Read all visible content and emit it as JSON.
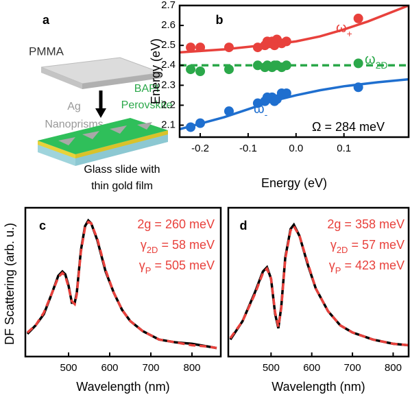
{
  "diagram": {
    "panel_label": "a",
    "pmma": "PMMA",
    "ag": [
      "Ag",
      "Nanoprisms"
    ],
    "bapi": [
      "BAPI",
      "Perovskite"
    ],
    "glass": [
      "Glass slide with",
      "thin gold film"
    ]
  },
  "chart_data": [
    {
      "type": "scatter",
      "panel_label": "b",
      "xlabel": "Energy (eV)",
      "ylabel": "Energy (eV)",
      "xlim": [
        -0.243,
        0.235
      ],
      "ylim": [
        2.04,
        2.7
      ],
      "xticks": [
        -0.2,
        -0.1,
        {
          "value": 0,
          "label": "0.0"
        },
        0.1
      ],
      "yticks": [
        2.1,
        2.2,
        2.3,
        2.4,
        2.5,
        2.6,
        2.7
      ],
      "series": [
        {
          "color": "#e8413c",
          "label": {
            "symbol": "ω",
            "sub": "+"
          },
          "x": [
            -0.22,
            -0.2,
            -0.14,
            -0.08,
            -0.065,
            -0.06,
            -0.055,
            -0.05,
            -0.045,
            -0.04,
            -0.03,
            -0.02,
            0.13
          ],
          "values": [
            2.49,
            2.49,
            2.49,
            2.49,
            2.5,
            2.52,
            2.51,
            2.52,
            2.5,
            2.53,
            2.51,
            2.52,
            2.635
          ]
        },
        {
          "color": "#2ba84a",
          "label": {
            "symbol": "ω",
            "sub": "2D"
          },
          "x": [
            -0.22,
            -0.2,
            -0.14,
            -0.08,
            -0.065,
            -0.06,
            -0.05,
            -0.045,
            -0.04,
            -0.03,
            -0.02,
            0.13
          ],
          "values": [
            2.38,
            2.37,
            2.38,
            2.4,
            2.39,
            2.4,
            2.39,
            2.4,
            2.4,
            2.39,
            2.4,
            2.41
          ]
        },
        {
          "color": "#1f6fcf",
          "label": {
            "symbol": "ω",
            "sub": "-"
          },
          "x": [
            -0.22,
            -0.2,
            -0.14,
            -0.08,
            -0.065,
            -0.06,
            -0.05,
            -0.045,
            -0.04,
            -0.03,
            -0.02,
            0.13
          ],
          "values": [
            2.09,
            2.11,
            2.17,
            2.21,
            2.22,
            2.24,
            2.24,
            2.22,
            2.23,
            2.26,
            2.26,
            2.29
          ]
        },
        {
          "kind": "fit",
          "color": "#e8413c",
          "x": [
            -0.243,
            -0.15,
            -0.05,
            0,
            0.05,
            0.1,
            0.15,
            0.235
          ],
          "values": [
            2.465,
            2.48,
            2.505,
            2.52,
            2.545,
            2.58,
            2.62,
            2.7
          ]
        },
        {
          "kind": "fit",
          "dashed": true,
          "color": "#2ba84a",
          "x": [
            -0.243,
            0.235
          ],
          "values": [
            2.4,
            2.4
          ]
        },
        {
          "kind": "fit",
          "color": "#1f6fcf",
          "x": [
            -0.243,
            -0.15,
            -0.1,
            -0.05,
            0,
            0.05,
            0.1,
            0.17,
            0.235
          ],
          "values": [
            2.08,
            2.14,
            2.18,
            2.22,
            2.25,
            2.275,
            2.295,
            2.315,
            2.33
          ]
        }
      ],
      "annotation": "Ω = 284 meV"
    },
    {
      "type": "line",
      "panel_label": "c",
      "xlabel": "Wavelength (nm)",
      "ylabel": "DF Scattering (arb. u.)",
      "xlim": [
        395,
        870
      ],
      "ylim": [
        0,
        1.05
      ],
      "xticks": [
        500,
        600,
        700,
        800
      ],
      "series": [
        {
          "color": "#000000",
          "x": [
            400,
            420,
            440,
            460,
            475,
            485,
            492,
            500,
            508,
            515,
            520,
            530,
            540,
            548,
            555,
            570,
            590,
            610,
            630,
            650,
            680,
            720,
            760,
            800,
            840,
            860
          ],
          "values": [
            0.16,
            0.22,
            0.3,
            0.45,
            0.57,
            0.6,
            0.58,
            0.5,
            0.38,
            0.38,
            0.45,
            0.75,
            0.92,
            0.96,
            0.94,
            0.82,
            0.6,
            0.45,
            0.33,
            0.25,
            0.18,
            0.12,
            0.1,
            0.09,
            0.07,
            0.06
          ]
        },
        {
          "dashed": true,
          "color": "#e8413c",
          "x": [
            400,
            420,
            440,
            460,
            475,
            485,
            492,
            500,
            508,
            515,
            520,
            530,
            540,
            548,
            555,
            570,
            590,
            610,
            630,
            650,
            680,
            720,
            760,
            800,
            840,
            860
          ],
          "values": [
            0.17,
            0.22,
            0.31,
            0.45,
            0.56,
            0.59,
            0.57,
            0.49,
            0.39,
            0.37,
            0.44,
            0.74,
            0.91,
            0.95,
            0.94,
            0.83,
            0.61,
            0.45,
            0.33,
            0.25,
            0.18,
            0.12,
            0.1,
            0.08,
            0.07,
            0.06
          ]
        }
      ],
      "annotations": [
        {
          "text": "2g = 260 meV"
        },
        {
          "symbol": "γ",
          "sub": "2D",
          "text": " = 58 meV"
        },
        {
          "symbol": "γ",
          "sub": "P",
          "text": " = 505 meV"
        }
      ]
    },
    {
      "type": "line",
      "panel_label": "d",
      "xlabel": "Wavelength (nm)",
      "xlim": [
        395,
        838
      ],
      "ylim": [
        0,
        1.05
      ],
      "xticks": [
        500,
        600,
        700,
        800
      ],
      "series": [
        {
          "color": "#000000",
          "x": [
            400,
            430,
            460,
            480,
            490,
            500,
            510,
            518,
            525,
            535,
            548,
            556,
            570,
            590,
            610,
            640,
            670,
            700,
            750,
            800,
            838
          ],
          "values": [
            0.12,
            0.25,
            0.45,
            0.6,
            0.63,
            0.55,
            0.3,
            0.2,
            0.35,
            0.7,
            0.9,
            0.93,
            0.85,
            0.65,
            0.48,
            0.32,
            0.22,
            0.17,
            0.12,
            0.09,
            0.08
          ]
        },
        {
          "dashed": true,
          "color": "#e8413c",
          "x": [
            400,
            430,
            460,
            480,
            490,
            500,
            510,
            518,
            525,
            535,
            548,
            556,
            570,
            590,
            610,
            640,
            670,
            700,
            750,
            800,
            838
          ],
          "values": [
            0.13,
            0.25,
            0.44,
            0.59,
            0.62,
            0.55,
            0.31,
            0.21,
            0.34,
            0.69,
            0.89,
            0.92,
            0.85,
            0.66,
            0.48,
            0.32,
            0.22,
            0.17,
            0.12,
            0.09,
            0.08
          ]
        }
      ],
      "annotations": [
        {
          "text": "2g = 358 meV"
        },
        {
          "symbol": "γ",
          "sub": "2D",
          "text": " = 57 meV"
        },
        {
          "symbol": "γ",
          "sub": "P",
          "text": " = 423 meV"
        }
      ]
    }
  ]
}
